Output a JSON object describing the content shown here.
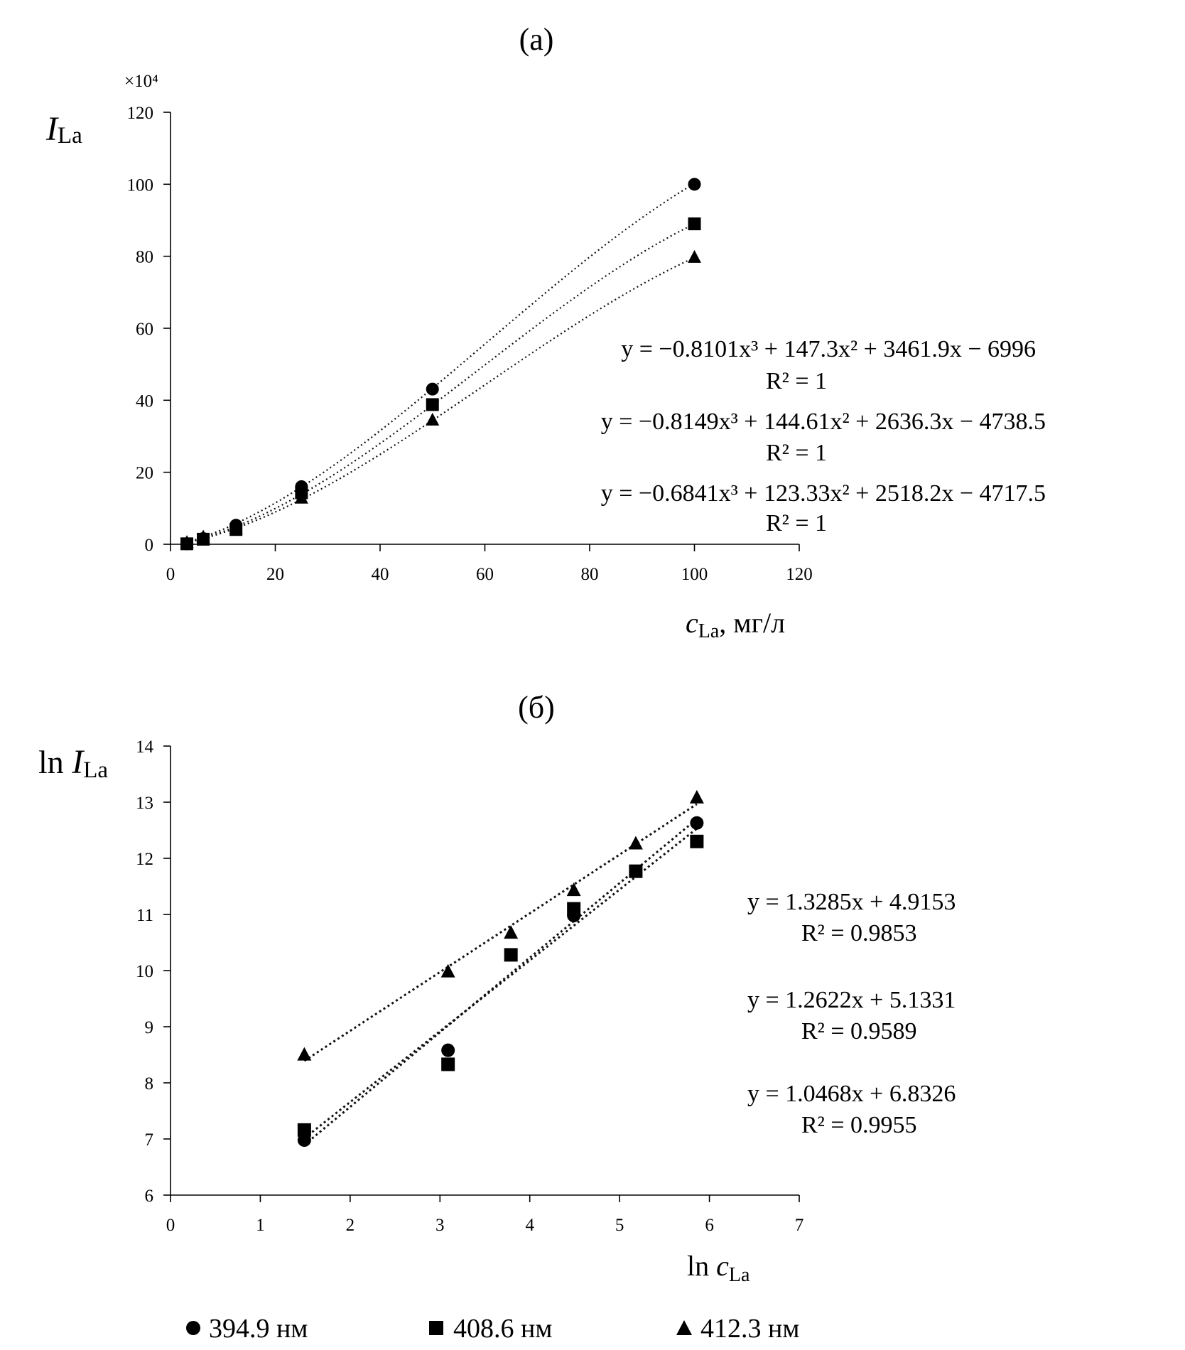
{
  "chart_data": [
    {
      "type": "scatter",
      "title": "(а)",
      "multiplier": "×10⁴",
      "ylabel": {
        "main": "I",
        "sub": "La"
      },
      "xlabel": {
        "main": "c",
        "sub": "La",
        "suffix": ", мг/л"
      },
      "xlim": [
        0,
        120
      ],
      "ylim": [
        0,
        120
      ],
      "xticks": [
        "0",
        "20",
        "40",
        "60",
        "80",
        "100",
        "120"
      ],
      "yticks": [
        "0",
        "20",
        "40",
        "60",
        "80",
        "100",
        "120"
      ],
      "trendline": "polynomial-3",
      "series": [
        {
          "name": "394.9 нм",
          "marker": "circle",
          "x": [
            3.125,
            6.25,
            12.5,
            25,
            50,
            100
          ],
          "y": [
            0.11,
            1.6,
            5.3,
            16.0,
            43.1,
            100.0
          ]
        },
        {
          "name": "408.6 нм",
          "marker": "square",
          "x": [
            3.125,
            6.25,
            12.5,
            25,
            50,
            100
          ],
          "y": [
            0.13,
            1.4,
            4.1,
            14.3,
            38.8,
            89.0
          ]
        },
        {
          "name": "412.3 нм",
          "marker": "triangle",
          "x": [
            3.125,
            6.25,
            12.5,
            25,
            50,
            100
          ],
          "y": [
            0.49,
            2.0,
            4.5,
            12.8,
            34.5,
            79.7
          ]
        }
      ],
      "fits": [
        {
          "coef": [
            -0.8101,
            147.3,
            3461.9,
            -6996
          ]
        },
        {
          "coef": [
            -0.8149,
            144.61,
            2636.3,
            -4738.5
          ]
        },
        {
          "coef": [
            -0.6841,
            123.33,
            2518.2,
            -4717.5
          ]
        }
      ],
      "equations": [
        {
          "y": "y = −0.8101x³ + 147.3x² + 3461.9x − 6996",
          "r2": "R² = 1"
        },
        {
          "y": "y = −0.8149x³ + 144.61x² + 2636.3x − 4738.5",
          "r2": "R² = 1"
        },
        {
          "y": "y = −0.6841x³ + 123.33x² + 2518.2x − 4717.5",
          "r2": "R² = 1"
        }
      ]
    },
    {
      "type": "scatter",
      "title": "(б)",
      "ylabel": {
        "main": "I",
        "prefix": "ln ",
        "sub": "La"
      },
      "xlabel": {
        "main": "c",
        "prefix": "ln ",
        "sub": "La"
      },
      "xlim": [
        0,
        7
      ],
      "ylim": [
        6,
        14
      ],
      "xticks": [
        "0",
        "1",
        "2",
        "3",
        "4",
        "5",
        "6",
        "7"
      ],
      "yticks": [
        "6",
        "7",
        "8",
        "9",
        "10",
        "11",
        "12",
        "13",
        "14"
      ],
      "trendline": "linear",
      "series": [
        {
          "name": "394.9 нм",
          "marker": "circle",
          "x": [
            1.49,
            3.09,
            4.49,
            5.86
          ],
          "y": [
            6.98,
            8.58,
            10.98,
            12.63
          ]
        },
        {
          "name": "408.6 нм",
          "marker": "square",
          "x": [
            1.49,
            3.09,
            3.79,
            4.49,
            5.18,
            5.86
          ],
          "y": [
            7.16,
            8.33,
            10.28,
            11.1,
            11.77,
            12.3
          ]
        },
        {
          "name": "412.3 нм",
          "marker": "triangle",
          "x": [
            1.49,
            3.09,
            3.79,
            4.49,
            5.18,
            5.86
          ],
          "y": [
            8.5,
            9.98,
            10.67,
            11.43,
            12.26,
            13.08
          ]
        }
      ],
      "fits": [
        {
          "slope": 1.3285,
          "intercept": 4.9153,
          "x0": 1.49,
          "x1": 5.86
        },
        {
          "slope": 1.2622,
          "intercept": 5.1331,
          "x0": 1.49,
          "x1": 5.86
        },
        {
          "slope": 1.0468,
          "intercept": 6.8326,
          "x0": 1.49,
          "x1": 5.86
        }
      ],
      "equations": [
        {
          "y": "y = 1.3285x + 4.9153",
          "r2": "R² = 0.9853"
        },
        {
          "y": "y = 1.2622x + 5.1331",
          "r2": "R² = 0.9589"
        },
        {
          "y": "y = 1.0468x + 6.8326",
          "r2": "R² = 0.9955"
        }
      ]
    }
  ],
  "legend": [
    {
      "marker": "circle",
      "label": "394.9 нм"
    },
    {
      "marker": "square",
      "label": "408.6 нм"
    },
    {
      "marker": "triangle",
      "label": "412.3 нм"
    }
  ]
}
